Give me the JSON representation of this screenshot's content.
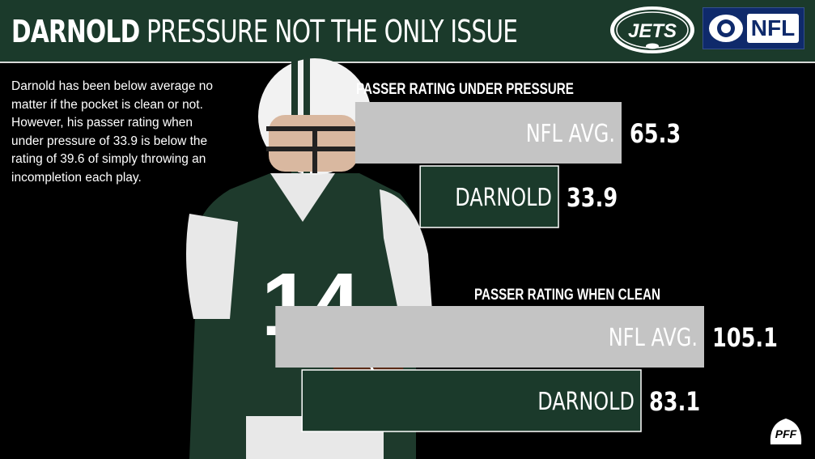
{
  "header": {
    "title_bold": "DARNOLD",
    "title_light": "PRESSURE NOT THE ONLY ISSUE",
    "jets_logo_text": "JETS",
    "nfl_logo_text": "NFL"
  },
  "description": "Darnold has been below average no matter if the pocket is clean or not. However, his passer rating when under pressure of 33.9 is below the rating of 39.6 of simply throwing an incompletion each play.",
  "footer": {
    "pff_logo_text": "PFF"
  },
  "colors": {
    "header_bg": "#1b3a2b",
    "nfl_bar": "#c4c4c4",
    "darnold_bar": "#1b3a2b",
    "bar_border": "#ffffff",
    "cbs_blue": "#0f2a6b"
  },
  "chart_data": [
    {
      "type": "bar",
      "title": "PASSER RATING UNDER PRESSURE",
      "categories": [
        "NFL AVG.",
        "DARNOLD"
      ],
      "values": [
        65.3,
        33.9
      ]
    },
    {
      "type": "bar",
      "title": "PASSER RATING WHEN CLEAN",
      "categories": [
        "NFL AVG.",
        "DARNOLD"
      ],
      "values": [
        105.1,
        83.1
      ]
    }
  ]
}
